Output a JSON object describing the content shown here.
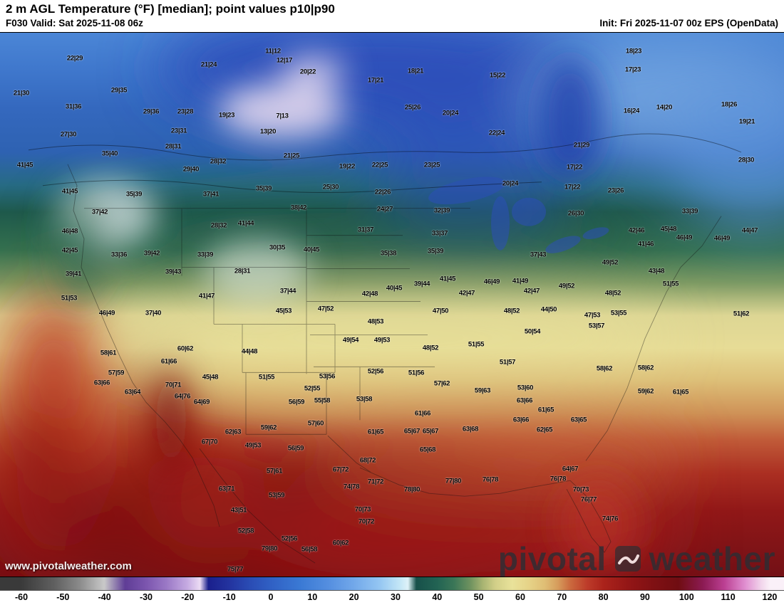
{
  "header": {
    "title": "2 m AGL Temperature (°F) [median]; point values p10|p90",
    "valid": "F030 Valid: Sat 2025-11-08 06z",
    "init": "Init: Fri 2025-11-07 00z EPS (OpenData)"
  },
  "watermark": {
    "site": "www.pivotalweather.com",
    "brand_left": "pivotal",
    "brand_right": "weather"
  },
  "colorbar": {
    "min": -60,
    "max": 120,
    "step": 10,
    "tick_labels": [
      "-60",
      "-50",
      "-40",
      "-30",
      "-20",
      "-10",
      "0",
      "10",
      "20",
      "30",
      "40",
      "50",
      "60",
      "70",
      "80",
      "90",
      "100",
      "110",
      "120"
    ],
    "stops": [
      {
        "t": -60,
        "c": "#3a3a3a"
      },
      {
        "t": -52,
        "c": "#606060"
      },
      {
        "t": -46,
        "c": "#8a8a8a"
      },
      {
        "t": -40,
        "c": "#c9c9c9"
      },
      {
        "t": -35,
        "c": "#5f3d96"
      },
      {
        "t": -30,
        "c": "#7b55ae"
      },
      {
        "t": -25,
        "c": "#9b79c6"
      },
      {
        "t": -20,
        "c": "#c6abe2"
      },
      {
        "t": -17,
        "c": "#ecdcf4"
      },
      {
        "t": -15,
        "c": "#1a1f8c"
      },
      {
        "t": -10,
        "c": "#23339f"
      },
      {
        "t": -5,
        "c": "#2a4cb4"
      },
      {
        "t": 0,
        "c": "#3060c4"
      },
      {
        "t": 7,
        "c": "#3a79d4"
      },
      {
        "t": 14,
        "c": "#558fe0"
      },
      {
        "t": 20,
        "c": "#72a8ea"
      },
      {
        "t": 26,
        "c": "#93c5f2"
      },
      {
        "t": 31,
        "c": "#c3e6f6"
      },
      {
        "t": 33,
        "c": "#dff2f8"
      },
      {
        "t": 35,
        "c": "#17504a"
      },
      {
        "t": 40,
        "c": "#226353"
      },
      {
        "t": 44,
        "c": "#3a7657"
      },
      {
        "t": 48,
        "c": "#6f925f"
      },
      {
        "t": 51,
        "c": "#a8b472"
      },
      {
        "t": 54,
        "c": "#d2cf88"
      },
      {
        "t": 58,
        "c": "#e9e29a"
      },
      {
        "t": 62,
        "c": "#e6d388"
      },
      {
        "t": 66,
        "c": "#dfbd74"
      },
      {
        "t": 69,
        "c": "#d69c5c"
      },
      {
        "t": 72,
        "c": "#cb6a3e"
      },
      {
        "t": 76,
        "c": "#bd3c2a"
      },
      {
        "t": 80,
        "c": "#ab231b"
      },
      {
        "t": 86,
        "c": "#931616"
      },
      {
        "t": 92,
        "c": "#7f1013"
      },
      {
        "t": 98,
        "c": "#700d12"
      },
      {
        "t": 104,
        "c": "#8c1b54"
      },
      {
        "t": 109,
        "c": "#bb3f92"
      },
      {
        "t": 114,
        "c": "#e08ed0"
      },
      {
        "t": 118,
        "c": "#f2d6ec"
      },
      {
        "t": 120,
        "c": "#faf0f8"
      }
    ]
  },
  "map": {
    "points": [
      [
        105,
        81,
        "22|29"
      ],
      [
        293,
        90,
        "21|24"
      ],
      [
        383,
        71,
        "11|12"
      ],
      [
        399,
        84,
        "12|17"
      ],
      [
        432,
        100,
        "20|22"
      ],
      [
        527,
        112,
        "17|21"
      ],
      [
        583,
        99,
        "18|21"
      ],
      [
        698,
        105,
        "15|22"
      ],
      [
        889,
        71,
        "18|23"
      ],
      [
        888,
        97,
        "17|23"
      ],
      [
        1023,
        146,
        "18|26"
      ],
      [
        30,
        130,
        "21|30"
      ],
      [
        167,
        126,
        "29|35"
      ],
      [
        103,
        149,
        "31|36"
      ],
      [
        212,
        156,
        "29|36"
      ],
      [
        260,
        156,
        "23|28"
      ],
      [
        318,
        161,
        "19|23"
      ],
      [
        396,
        162,
        "7|13"
      ],
      [
        579,
        150,
        "25|26"
      ],
      [
        632,
        158,
        "20|24"
      ],
      [
        886,
        155,
        "16|24"
      ],
      [
        932,
        150,
        "14|20"
      ],
      [
        1048,
        170,
        "19|21"
      ],
      [
        96,
        188,
        "27|30"
      ],
      [
        251,
        183,
        "23|31"
      ],
      [
        376,
        184,
        "13|20"
      ],
      [
        697,
        186,
        "22|24"
      ],
      [
        816,
        203,
        "21|29"
      ],
      [
        154,
        215,
        "35|40"
      ],
      [
        243,
        205,
        "28|31"
      ],
      [
        306,
        226,
        "28|32"
      ],
      [
        268,
        237,
        "29|40"
      ],
      [
        409,
        218,
        "21|25"
      ],
      [
        487,
        233,
        "19|22"
      ],
      [
        533,
        231,
        "22|25"
      ],
      [
        606,
        231,
        "23|25"
      ],
      [
        806,
        234,
        "17|22"
      ],
      [
        1047,
        224,
        "28|30"
      ],
      [
        35,
        231,
        "41|45"
      ],
      [
        98,
        268,
        "41|45"
      ],
      [
        188,
        272,
        "35|39"
      ],
      [
        296,
        272,
        "37|41"
      ],
      [
        370,
        264,
        "35|39"
      ],
      [
        464,
        262,
        "25|30"
      ],
      [
        537,
        269,
        "22|26"
      ],
      [
        540,
        293,
        "24|27"
      ],
      [
        716,
        257,
        "20|24"
      ],
      [
        803,
        262,
        "17|22"
      ],
      [
        864,
        267,
        "23|26"
      ],
      [
        140,
        297,
        "37|42"
      ],
      [
        419,
        291,
        "38|42"
      ],
      [
        307,
        316,
        "28|32"
      ],
      [
        345,
        313,
        "41|44"
      ],
      [
        620,
        295,
        "32|39"
      ],
      [
        808,
        299,
        "26|30"
      ],
      [
        968,
        296,
        "33|39"
      ],
      [
        98,
        324,
        "46|48"
      ],
      [
        513,
        322,
        "31|37"
      ],
      [
        617,
        327,
        "33|37"
      ],
      [
        893,
        323,
        "42|46"
      ],
      [
        938,
        321,
        "45|48"
      ],
      [
        1052,
        323,
        "44|47"
      ],
      [
        1013,
        334,
        "46|49"
      ],
      [
        960,
        333,
        "46|49"
      ],
      [
        98,
        351,
        "42|45"
      ],
      [
        167,
        357,
        "33|36"
      ],
      [
        213,
        355,
        "39|42"
      ],
      [
        288,
        357,
        "33|39"
      ],
      [
        389,
        347,
        "30|35"
      ],
      [
        437,
        350,
        "40|45"
      ],
      [
        545,
        355,
        "35|38"
      ],
      [
        611,
        352,
        "35|39"
      ],
      [
        755,
        357,
        "37|43"
      ],
      [
        856,
        368,
        "49|52"
      ],
      [
        906,
        342,
        "41|46"
      ],
      [
        921,
        380,
        "43|48"
      ],
      [
        103,
        384,
        "39|41"
      ],
      [
        243,
        381,
        "39|43"
      ],
      [
        340,
        380,
        "28|31"
      ],
      [
        404,
        408,
        "37|44"
      ],
      [
        290,
        415,
        "41|47"
      ],
      [
        519,
        412,
        "42|48"
      ],
      [
        553,
        404,
        "40|45"
      ],
      [
        592,
        398,
        "39|44"
      ],
      [
        628,
        391,
        "41|45"
      ],
      [
        655,
        411,
        "42|47"
      ],
      [
        690,
        395,
        "46|49"
      ],
      [
        730,
        394,
        "41|49"
      ],
      [
        746,
        408,
        "42|47"
      ],
      [
        795,
        401,
        "49|52"
      ],
      [
        860,
        411,
        "48|52"
      ],
      [
        941,
        398,
        "51|55"
      ],
      [
        97,
        418,
        "51|53"
      ],
      [
        150,
        440,
        "46|49"
      ],
      [
        215,
        440,
        "37|40"
      ],
      [
        398,
        437,
        "45|53"
      ],
      [
        457,
        434,
        "47|52"
      ],
      [
        527,
        452,
        "48|53"
      ],
      [
        618,
        437,
        "47|50"
      ],
      [
        718,
        437,
        "48|52"
      ],
      [
        770,
        435,
        "44|50"
      ],
      [
        831,
        443,
        "47|53"
      ],
      [
        868,
        440,
        "53|55"
      ],
      [
        1040,
        441,
        "51|62"
      ],
      [
        152,
        496,
        "58|61"
      ],
      [
        260,
        490,
        "60|62"
      ],
      [
        237,
        508,
        "61|66"
      ],
      [
        350,
        494,
        "44|48"
      ],
      [
        492,
        478,
        "49|54"
      ],
      [
        536,
        478,
        "49|53"
      ],
      [
        604,
        489,
        "48|52"
      ],
      [
        668,
        484,
        "51|55"
      ],
      [
        747,
        466,
        "50|54"
      ],
      [
        837,
        458,
        "53|57"
      ],
      [
        712,
        509,
        "51|57"
      ],
      [
        906,
        517,
        "58|62"
      ],
      [
        163,
        524,
        "57|59"
      ],
      [
        143,
        538,
        "63|66"
      ],
      [
        186,
        551,
        "63|64"
      ],
      [
        243,
        541,
        "70|71"
      ],
      [
        256,
        557,
        "64|76"
      ],
      [
        295,
        530,
        "45|48"
      ],
      [
        374,
        530,
        "51|55"
      ],
      [
        438,
        546,
        "52|55"
      ],
      [
        459,
        529,
        "53|56"
      ],
      [
        527,
        522,
        "52|56"
      ],
      [
        584,
        524,
        "51|56"
      ],
      [
        620,
        539,
        "57|62"
      ],
      [
        677,
        549,
        "59|63"
      ],
      [
        737,
        545,
        "53|60"
      ],
      [
        848,
        518,
        "58|62"
      ],
      [
        906,
        550,
        "59|62"
      ],
      [
        955,
        551,
        "61|65"
      ],
      [
        283,
        565,
        "64|69"
      ],
      [
        416,
        565,
        "56|59"
      ],
      [
        452,
        563,
        "55|58"
      ],
      [
        511,
        561,
        "53|58"
      ],
      [
        593,
        581,
        "61|66"
      ],
      [
        736,
        563,
        "63|66"
      ],
      [
        766,
        576,
        "61|65"
      ],
      [
        327,
        607,
        "62|63"
      ],
      [
        377,
        601,
        "59|62"
      ],
      [
        443,
        595,
        "57|60"
      ],
      [
        527,
        607,
        "61|65"
      ],
      [
        578,
        606,
        "65|67"
      ],
      [
        604,
        606,
        "65|67"
      ],
      [
        660,
        603,
        "63|68"
      ],
      [
        731,
        590,
        "63|66"
      ],
      [
        764,
        604,
        "62|65"
      ],
      [
        812,
        590,
        "63|65"
      ],
      [
        355,
        626,
        "49|53"
      ],
      [
        415,
        630,
        "56|59"
      ],
      [
        600,
        632,
        "65|68"
      ],
      [
        516,
        647,
        "68|72"
      ],
      [
        294,
        621,
        "67|70"
      ],
      [
        385,
        662,
        "57|61"
      ],
      [
        478,
        660,
        "67|72"
      ],
      [
        527,
        677,
        "71|72"
      ],
      [
        493,
        684,
        "74|78"
      ],
      [
        578,
        688,
        "78|80"
      ],
      [
        636,
        676,
        "77|80"
      ],
      [
        688,
        674,
        "76|78"
      ],
      [
        783,
        673,
        "76|78"
      ],
      [
        318,
        687,
        "63|71"
      ],
      [
        388,
        696,
        "53|59"
      ],
      [
        509,
        716,
        "70|73"
      ],
      [
        800,
        659,
        "64|67"
      ],
      [
        815,
        688,
        "70|73"
      ],
      [
        826,
        702,
        "76|77"
      ],
      [
        856,
        729,
        "74|76"
      ],
      [
        335,
        717,
        "43|51"
      ],
      [
        345,
        746,
        "52|58"
      ],
      [
        378,
        771,
        "79|80"
      ],
      [
        406,
        757,
        "52|56"
      ],
      [
        434,
        772,
        "56|58"
      ],
      [
        478,
        763,
        "60|62"
      ],
      [
        514,
        733,
        "70|72"
      ],
      [
        330,
        800,
        "75|77"
      ]
    ]
  }
}
